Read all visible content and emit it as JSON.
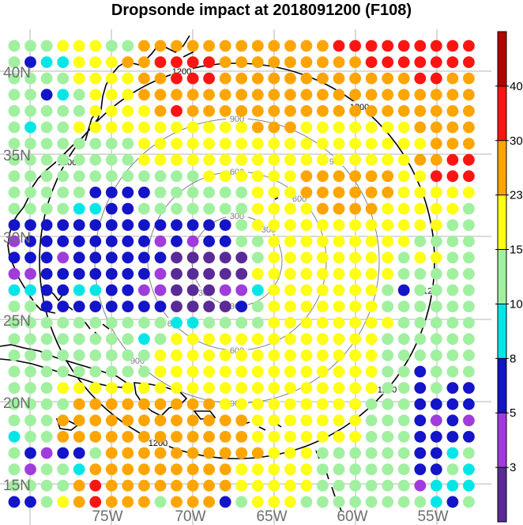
{
  "title": "Dropsonde impact at 2018091200 (F108)",
  "palette": [
    "#5a2a96",
    "#a03cdc",
    "#1414c8",
    "#00e6e6",
    "#a0f0a0",
    "#ffff14",
    "#ffa500",
    "#ff1414",
    "#b40000"
  ],
  "colorbar": {
    "boundaries": [
      "3",
      "5",
      "8",
      "10",
      "15",
      "23",
      "30",
      "40"
    ],
    "colors": [
      "#5a2a96",
      "#a03cdc",
      "#1414c8",
      "#00e6e6",
      "#a0f0a0",
      "#ffff14",
      "#ffa500",
      "#ff1414",
      "#b40000"
    ]
  },
  "lat_labels": [
    "40N",
    "35N",
    "30N",
    "25N",
    "20N",
    "15N"
  ],
  "lon_labels": [
    "75W",
    "70W",
    "65W",
    "60W",
    "55W"
  ],
  "range_rings": [
    {
      "label": "300",
      "color": "#808080"
    },
    {
      "label": "600",
      "color": "#808080"
    },
    {
      "label": "900",
      "color": "#808080"
    },
    {
      "label": "1200",
      "color": "#000000"
    }
  ],
  "grid_values": [
    [
      4,
      4,
      4,
      5,
      5,
      5,
      4,
      4,
      6,
      6,
      6,
      6,
      6,
      6,
      6,
      6,
      6,
      6,
      6,
      6,
      7,
      7,
      7,
      7,
      7,
      7,
      7,
      7,
      7
    ],
    [
      4,
      2,
      3,
      3,
      5,
      5,
      5,
      6,
      6,
      7,
      7,
      7,
      7,
      6,
      6,
      6,
      6,
      6,
      6,
      6,
      6,
      6,
      7,
      7,
      7,
      7,
      7,
      7,
      7
    ],
    [
      4,
      4,
      4,
      4,
      5,
      5,
      5,
      5,
      6,
      6,
      7,
      7,
      7,
      6,
      6,
      6,
      6,
      6,
      6,
      6,
      6,
      6,
      6,
      6,
      6,
      7,
      7,
      6,
      6
    ],
    [
      4,
      4,
      2,
      3,
      4,
      5,
      5,
      5,
      6,
      6,
      6,
      6,
      6,
      6,
      6,
      6,
      6,
      6,
      6,
      6,
      6,
      6,
      6,
      6,
      6,
      6,
      6,
      6,
      6
    ],
    [
      4,
      4,
      4,
      4,
      4,
      5,
      5,
      5,
      5,
      6,
      7,
      6,
      6,
      6,
      6,
      6,
      6,
      6,
      6,
      6,
      6,
      6,
      6,
      6,
      6,
      6,
      6,
      6,
      6
    ],
    [
      4,
      3,
      4,
      4,
      5,
      5,
      5,
      5,
      5,
      5,
      5,
      5,
      5,
      5,
      5,
      6,
      6,
      6,
      5,
      5,
      5,
      5,
      5,
      5,
      5,
      6,
      6,
      6,
      6
    ],
    [
      4,
      4,
      4,
      4,
      4,
      4,
      4,
      4,
      5,
      5,
      5,
      5,
      5,
      5,
      5,
      5,
      5,
      5,
      5,
      5,
      5,
      5,
      5,
      5,
      5,
      5,
      6,
      6,
      6
    ],
    [
      4,
      4,
      4,
      4,
      4,
      4,
      4,
      4,
      5,
      5,
      5,
      5,
      5,
      5,
      5,
      5,
      5,
      5,
      5,
      5,
      5,
      5,
      5,
      5,
      5,
      6,
      6,
      7,
      7
    ],
    [
      4,
      4,
      4,
      4,
      4,
      4,
      4,
      4,
      4,
      4,
      4,
      4,
      5,
      5,
      5,
      5,
      5,
      5,
      6,
      6,
      6,
      6,
      6,
      6,
      5,
      5,
      7,
      7,
      7
    ],
    [
      4,
      4,
      4,
      4,
      4,
      2,
      2,
      2,
      2,
      4,
      4,
      4,
      4,
      4,
      4,
      5,
      5,
      5,
      6,
      6,
      6,
      6,
      6,
      6,
      5,
      5,
      5,
      5,
      5
    ],
    [
      4,
      4,
      4,
      4,
      3,
      3,
      2,
      2,
      4,
      4,
      4,
      4,
      4,
      4,
      4,
      5,
      5,
      5,
      5,
      6,
      6,
      6,
      6,
      5,
      5,
      5,
      5,
      5,
      4
    ],
    [
      2,
      2,
      2,
      2,
      2,
      2,
      2,
      2,
      2,
      2,
      2,
      2,
      2,
      2,
      4,
      5,
      5,
      5,
      5,
      5,
      5,
      5,
      5,
      5,
      5,
      5,
      5,
      4,
      4
    ],
    [
      1,
      2,
      2,
      2,
      2,
      2,
      2,
      2,
      2,
      1,
      2,
      1,
      2,
      2,
      4,
      4,
      5,
      5,
      5,
      5,
      5,
      5,
      5,
      5,
      5,
      4,
      4,
      4,
      4
    ],
    [
      2,
      2,
      2,
      1,
      2,
      2,
      2,
      2,
      2,
      2,
      0,
      0,
      0,
      0,
      0,
      4,
      5,
      5,
      5,
      5,
      5,
      5,
      5,
      5,
      4,
      5,
      5,
      4,
      4
    ],
    [
      1,
      1,
      2,
      2,
      2,
      2,
      2,
      2,
      2,
      1,
      0,
      0,
      0,
      0,
      0,
      5,
      5,
      5,
      5,
      5,
      5,
      5,
      5,
      5,
      4,
      4,
      4,
      4,
      4
    ],
    [
      3,
      3,
      2,
      2,
      3,
      3,
      2,
      2,
      1,
      1,
      0,
      0,
      0,
      1,
      1,
      3,
      5,
      5,
      5,
      5,
      5,
      5,
      5,
      4,
      2,
      4,
      4,
      4,
      4
    ],
    [
      4,
      4,
      2,
      2,
      2,
      2,
      2,
      2,
      2,
      2,
      0,
      0,
      0,
      0,
      2,
      4,
      5,
      5,
      5,
      5,
      5,
      5,
      5,
      4,
      4,
      4,
      4,
      4,
      4
    ],
    [
      4,
      4,
      4,
      4,
      4,
      4,
      4,
      4,
      4,
      4,
      3,
      3,
      4,
      4,
      4,
      4,
      5,
      5,
      5,
      5,
      5,
      5,
      5,
      5,
      4,
      4,
      4,
      4,
      4
    ],
    [
      4,
      4,
      4,
      4,
      4,
      4,
      4,
      4,
      3,
      4,
      5,
      5,
      5,
      5,
      5,
      5,
      5,
      5,
      5,
      5,
      5,
      5,
      5,
      4,
      4,
      4,
      4,
      4,
      4
    ],
    [
      4,
      4,
      4,
      4,
      4,
      4,
      4,
      4,
      4,
      5,
      5,
      5,
      5,
      5,
      5,
      5,
      5,
      5,
      5,
      5,
      5,
      5,
      5,
      4,
      4,
      4,
      4,
      4,
      4
    ],
    [
      4,
      4,
      4,
      4,
      4,
      4,
      4,
      4,
      4,
      5,
      5,
      5,
      5,
      5,
      5,
      5,
      5,
      5,
      5,
      5,
      5,
      5,
      5,
      4,
      4,
      2,
      4,
      4,
      4
    ],
    [
      4,
      4,
      4,
      5,
      5,
      5,
      5,
      5,
      5,
      5,
      5,
      5,
      5,
      5,
      5,
      5,
      5,
      5,
      5,
      5,
      5,
      5,
      5,
      4,
      4,
      2,
      4,
      2,
      2
    ],
    [
      4,
      4,
      4,
      4,
      6,
      6,
      6,
      6,
      6,
      6,
      6,
      6,
      6,
      5,
      5,
      5,
      5,
      5,
      5,
      5,
      5,
      5,
      4,
      4,
      4,
      2,
      2,
      2,
      2
    ],
    [
      4,
      4,
      4,
      6,
      6,
      6,
      6,
      6,
      6,
      6,
      6,
      6,
      6,
      6,
      6,
      5,
      5,
      5,
      5,
      5,
      5,
      5,
      4,
      4,
      4,
      2,
      1,
      2,
      1
    ],
    [
      3,
      4,
      4,
      6,
      6,
      6,
      6,
      6,
      6,
      6,
      6,
      6,
      6,
      6,
      6,
      5,
      5,
      5,
      5,
      5,
      5,
      5,
      4,
      4,
      4,
      2,
      2,
      2,
      2
    ],
    [
      4,
      2,
      1,
      2,
      2,
      4,
      6,
      6,
      6,
      6,
      6,
      6,
      6,
      6,
      6,
      6,
      5,
      5,
      5,
      4,
      4,
      4,
      4,
      4,
      4,
      2,
      2,
      3,
      4
    ],
    [
      4,
      1,
      4,
      4,
      3,
      6,
      6,
      6,
      6,
      6,
      6,
      6,
      6,
      6,
      5,
      5,
      5,
      5,
      5,
      4,
      4,
      4,
      4,
      4,
      4,
      2,
      2,
      4,
      3
    ],
    [
      4,
      4,
      4,
      4,
      6,
      7,
      6,
      6,
      6,
      6,
      6,
      6,
      6,
      6,
      5,
      5,
      5,
      5,
      5,
      4,
      4,
      4,
      4,
      4,
      4,
      1,
      3,
      3,
      3
    ],
    [
      2,
      2,
      4,
      5,
      6,
      7,
      6,
      6,
      6,
      4,
      6,
      6,
      6,
      2,
      4,
      5,
      5,
      5,
      4,
      4,
      4,
      4,
      4,
      4,
      4,
      4,
      3,
      2,
      4
    ]
  ]
}
